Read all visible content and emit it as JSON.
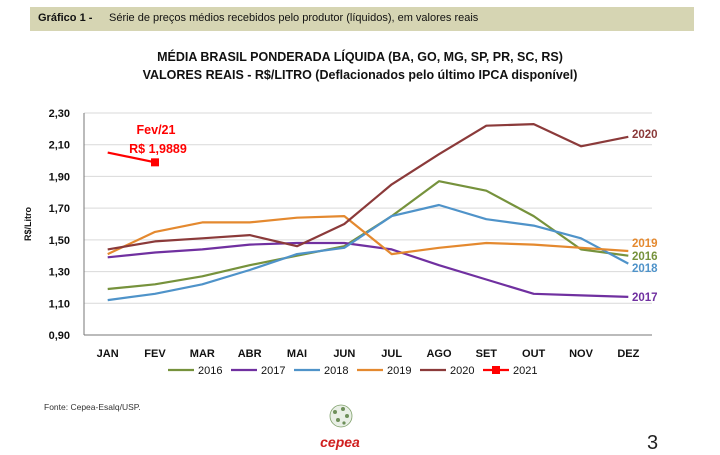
{
  "banner": {
    "label": "Gráfico 1 -",
    "text": "Série de preços médios recebidos pelo produtor (líquidos), em valores reais"
  },
  "chart_data": {
    "type": "line",
    "title": "MÉDIA BRASIL PONDERADA LÍQUIDA (BA, GO, MG, SP, PR, SC, RS)",
    "subtitle": "VALORES REAIS - R$/LITRO (Deflacionados pelo último IPCA disponível)",
    "ylabel": "R$/Litro",
    "xlabel": "",
    "ylim": [
      0.9,
      2.3
    ],
    "yticks": [
      "0,90",
      "1,10",
      "1,30",
      "1,50",
      "1,70",
      "1,90",
      "2,10",
      "2,30"
    ],
    "categories": [
      "JAN",
      "FEV",
      "MAR",
      "ABR",
      "MAI",
      "JUN",
      "JUL",
      "AGO",
      "SET",
      "OUT",
      "NOV",
      "DEZ"
    ],
    "grid": true,
    "legend_position": "bottom",
    "series": [
      {
        "name": "2016",
        "color": "#76923c",
        "values": [
          1.19,
          1.22,
          1.27,
          1.34,
          1.4,
          1.46,
          1.65,
          1.87,
          1.81,
          1.65,
          1.44,
          1.4
        ]
      },
      {
        "name": "2017",
        "color": "#7030a0",
        "values": [
          1.39,
          1.42,
          1.44,
          1.47,
          1.48,
          1.48,
          1.44,
          1.34,
          1.25,
          1.16,
          1.15,
          1.14
        ]
      },
      {
        "name": "2018",
        "color": "#4f93c9",
        "values": [
          1.12,
          1.16,
          1.22,
          1.31,
          1.41,
          1.45,
          1.65,
          1.72,
          1.63,
          1.59,
          1.51,
          1.35
        ]
      },
      {
        "name": "2019",
        "color": "#e4892f",
        "values": [
          1.41,
          1.55,
          1.61,
          1.61,
          1.64,
          1.65,
          1.41,
          1.45,
          1.48,
          1.47,
          1.45,
          1.43
        ]
      },
      {
        "name": "2020",
        "color": "#8b3a3a",
        "values": [
          1.44,
          1.49,
          1.51,
          1.53,
          1.46,
          1.6,
          1.85,
          2.04,
          2.22,
          2.23,
          2.09,
          2.15
        ]
      },
      {
        "name": "2021",
        "color": "#ff0000",
        "values": [
          2.05,
          1.9889,
          null,
          null,
          null,
          null,
          null,
          null,
          null,
          null,
          null,
          null
        ]
      }
    ],
    "end_labels": [
      {
        "series": "2020",
        "text": "2020"
      },
      {
        "series": "2019",
        "text": "2019"
      },
      {
        "series": "2016",
        "text": "2016"
      },
      {
        "series": "2018",
        "text": "2018"
      },
      {
        "series": "2017",
        "text": "2017"
      }
    ],
    "annotation": {
      "line1": "Fev/21",
      "line2": "R$ 1,9889",
      "color": "#ff0000"
    }
  },
  "footer": {
    "source": "Fonte: Cepea-Esalq/USP.",
    "logo_text": "cepea",
    "page_number": "3"
  }
}
